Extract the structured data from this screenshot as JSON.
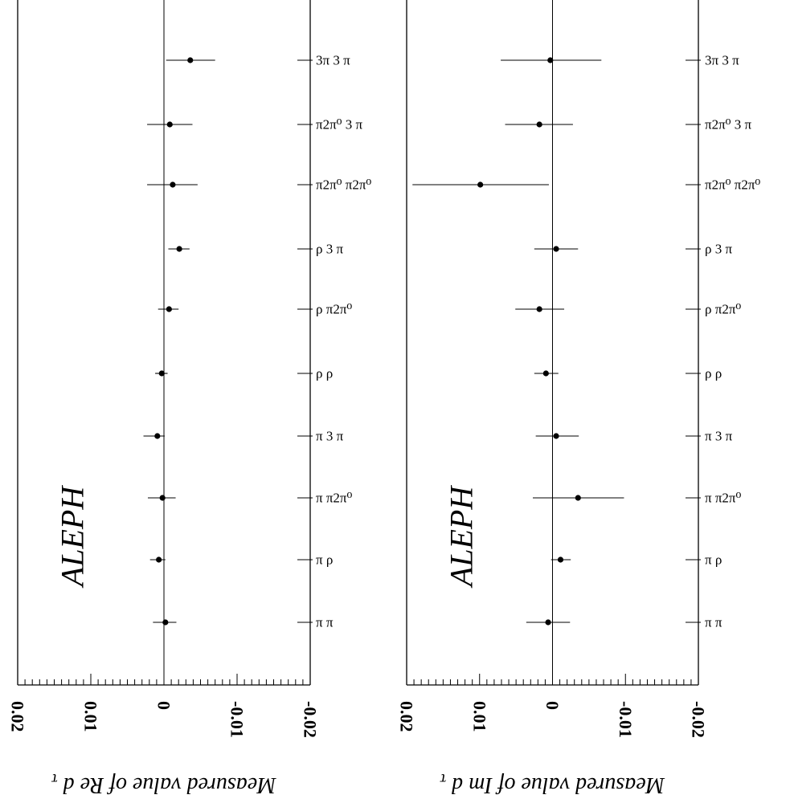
{
  "chart_data": [
    {
      "type": "scatter",
      "experiment": "ALEPH",
      "xlabel": "Measured value of Re d",
      "xlabel_sub": "τ",
      "xlim": [
        0.02,
        -0.02
      ],
      "x_ticks": [
        {
          "value": 0.02,
          "label": "0.02"
        },
        {
          "value": 0.01,
          "label": "0.01"
        },
        {
          "value": 0,
          "label": "0"
        },
        {
          "value": -0.01,
          "label": "-0.01"
        },
        {
          "value": -0.02,
          "label": "-0.02"
        }
      ],
      "categories": [
        "3π 3 π",
        "π2π⁰ 3 π",
        "π2π⁰ π2π⁰",
        "ρ 3 π",
        "ρ π2π⁰",
        "ρ ρ",
        "π 3 π",
        "π π2π⁰",
        "π ρ",
        "π π"
      ],
      "values": [
        -0.0036,
        -0.0008,
        -0.0012,
        -0.0021,
        -0.0007,
        0.0003,
        0.0009,
        0.0002,
        0.0007,
        -0.0002
      ],
      "err_minus": [
        0.0033,
        0.0031,
        0.0035,
        0.0015,
        0.0015,
        0.0009,
        0.0019,
        0.002,
        0.0012,
        0.0017
      ],
      "err_plus": [
        0.0034,
        0.0031,
        0.0034,
        0.0014,
        0.0013,
        0.0008,
        0.001,
        0.0018,
        0.0009,
        0.0015
      ]
    },
    {
      "type": "scatter",
      "experiment": "ALEPH",
      "xlabel": "Measured value of Im d",
      "xlabel_sub": "τ",
      "xlim": [
        0.02,
        -0.02
      ],
      "x_ticks": [
        {
          "value": 0.02,
          "label": "0.02"
        },
        {
          "value": 0.01,
          "label": "0.01"
        },
        {
          "value": 0,
          "label": "0"
        },
        {
          "value": -0.01,
          "label": "-0.01"
        },
        {
          "value": -0.02,
          "label": "-0.02"
        }
      ],
      "categories": [
        "3π 3 π",
        "π2π⁰ 3 π",
        "π2π⁰ π2π⁰",
        "ρ 3 π",
        "ρ π2π⁰",
        "ρ ρ",
        "π 3 π",
        "π π2π⁰",
        "π ρ",
        "π π"
      ],
      "values": [
        0.0003,
        0.0018,
        0.0099,
        -0.0005,
        0.0018,
        0.0009,
        -0.0005,
        -0.0035,
        -0.0011,
        0.0006
      ],
      "err_minus": [
        0.0068,
        0.0047,
        0.0093,
        0.003,
        0.0033,
        0.0016,
        0.0028,
        0.0062,
        0.0013,
        0.003
      ],
      "err_plus": [
        0.007,
        0.0046,
        0.0094,
        0.003,
        0.0034,
        0.0017,
        0.0031,
        0.0063,
        0.0014,
        0.003
      ]
    }
  ]
}
